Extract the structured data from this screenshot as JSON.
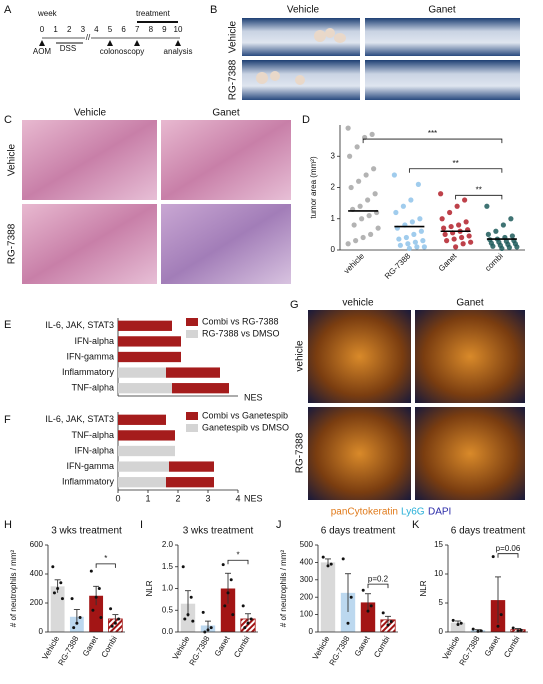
{
  "panels": [
    "A",
    "B",
    "C",
    "D",
    "E",
    "F",
    "G",
    "H",
    "I",
    "J",
    "K"
  ],
  "timeline": {
    "unit": "week",
    "weeks": [
      0,
      1,
      2,
      3,
      4,
      5,
      6,
      7,
      8,
      9,
      10
    ],
    "treatment": "treatment",
    "aom": "AOM",
    "dss": "DSS",
    "colonoscopy": "colonoscopy",
    "analysis": "analysis"
  },
  "images": {
    "B": {
      "columns": [
        "Vehicle",
        "Ganet"
      ],
      "rows": [
        "Vehicle",
        "RG-7388"
      ]
    },
    "C": {
      "columns": [
        "Vehicle",
        "Ganet"
      ],
      "rows": [
        "Vehicle",
        "RG-7388"
      ]
    },
    "G": {
      "columns": [
        "vehicle",
        "Ganet"
      ],
      "rows": [
        "vehicle",
        "RG-7388"
      ],
      "stains": [
        "panCytokeratin",
        "Ly6G",
        "DAPI"
      ]
    }
  },
  "chart_data": [
    {
      "type": "strip",
      "ylabel": "tumor area (mm²)",
      "categories": [
        "vehicle",
        "RG-7388",
        "Ganet",
        "combi"
      ],
      "colors": [
        "#a6a6a6",
        "#8fc3ea",
        "#b3202a",
        "#1d5a5a"
      ],
      "points": [
        [
          3.9,
          3.7,
          3.6,
          3.3,
          3.0,
          2.6,
          2.4,
          2.2,
          2.0,
          1.8,
          1.6,
          1.4,
          1.3,
          1.2,
          1.1,
          1.0,
          0.8,
          0.7,
          0.5,
          0.4,
          0.3,
          0.2
        ],
        [
          2.4,
          2.1,
          1.6,
          1.4,
          1.2,
          1.0,
          0.9,
          0.8,
          0.7,
          0.6,
          0.5,
          0.4,
          0.35,
          0.3,
          0.25,
          0.2,
          0.15,
          0.1,
          0.1,
          0.05
        ],
        [
          1.8,
          1.6,
          1.4,
          1.2,
          1.0,
          0.9,
          0.8,
          0.75,
          0.7,
          0.65,
          0.6,
          0.55,
          0.5,
          0.45,
          0.4,
          0.35,
          0.3,
          0.25,
          0.2,
          0.1
        ],
        [
          1.4,
          1.0,
          0.8,
          0.6,
          0.5,
          0.45,
          0.4,
          0.35,
          0.33,
          0.3,
          0.28,
          0.25,
          0.22,
          0.2,
          0.18,
          0.15,
          0.12,
          0.1,
          0.08,
          0.05
        ]
      ],
      "medians": [
        1.25,
        0.75,
        0.6,
        0.35
      ],
      "ylim": [
        0,
        4
      ],
      "yticks": [
        0,
        1,
        2,
        3
      ],
      "brackets": [
        {
          "label": "***",
          "from": "vehicle",
          "to": "combi",
          "y": 3.55
        },
        {
          "label": "**",
          "from": "RG-7388",
          "to": "combi",
          "y": 2.6
        },
        {
          "label": "**",
          "from": "Ganet",
          "to": "combi",
          "y": 1.75
        }
      ]
    },
    {
      "type": "hbar",
      "xlabel": "NES",
      "legend": "upper right",
      "categories": [
        "IL-6, JAK, STAT3",
        "IFN-alpha",
        "IFN-gamma",
        "Inflammatory",
        "TNF-alpha"
      ],
      "series": [
        {
          "name": "Combi vs RG-7388",
          "color": "#a51c1c",
          "values": [
            1.8,
            2.1,
            2.1,
            1.8,
            1.9
          ]
        },
        {
          "name": "RG-7388 vs DMSO",
          "color": "#d4d4d4",
          "values": [
            null,
            null,
            null,
            1.6,
            1.8
          ]
        }
      ],
      "xlim": [
        0,
        4
      ]
    },
    {
      "type": "hbar",
      "xlabel": "NES",
      "legend": "upper right",
      "categories": [
        "IL-6, JAK, STAT3",
        "TNF-alpha",
        "IFN-alpha",
        "IFN-gamma",
        "Inflammatory"
      ],
      "series": [
        {
          "name": "Combi vs Ganetespib",
          "color": "#a51c1c",
          "values": [
            1.6,
            1.9,
            null,
            1.5,
            1.6
          ]
        },
        {
          "name": "Ganetespib vs DMSO",
          "color": "#d4d4d4",
          "values": [
            null,
            null,
            1.9,
            1.7,
            1.6
          ]
        }
      ],
      "xlim": [
        0,
        4
      ],
      "xticks": [
        0,
        1,
        2,
        3,
        4
      ]
    },
    {
      "type": "barpoints",
      "title": "3 wks treatment",
      "ylabel": "# of neutrophils / mm²",
      "categories": [
        "Vehicle",
        "RG-7388",
        "Ganet",
        "Combi"
      ],
      "colors": [
        "#d9d9d9",
        "#bcd8ef",
        "#a31515",
        "#a31515"
      ],
      "hatch": [
        false,
        false,
        false,
        true
      ],
      "values": [
        315,
        105,
        250,
        90
      ],
      "errors": [
        45,
        50,
        65,
        30
      ],
      "points": [
        [
          450,
          340,
          300,
          270,
          230
        ],
        [
          230,
          100,
          60,
          30
        ],
        [
          420,
          300,
          240,
          150,
          100
        ],
        [
          160,
          90,
          60,
          40
        ]
      ],
      "ylim": [
        0,
        600
      ],
      "yticks": [
        0,
        200,
        400,
        600
      ],
      "brackets": [
        {
          "label": "*",
          "from": "Ganet",
          "to": "Combi",
          "y": 470
        }
      ]
    },
    {
      "type": "barpoints",
      "title": "3 wks treatment",
      "ylabel": "NLR",
      "categories": [
        "Vehicle",
        "RG-7388",
        "Ganet",
        "Combi"
      ],
      "colors": [
        "#d9d9d9",
        "#bcd8ef",
        "#a31515",
        "#a31515"
      ],
      "hatch": [
        false,
        false,
        false,
        true
      ],
      "values": [
        0.65,
        0.15,
        1.0,
        0.3
      ],
      "errors": [
        0.3,
        0.1,
        0.35,
        0.12
      ],
      "points": [
        [
          1.5,
          0.8,
          0.4,
          0.3,
          0.25
        ],
        [
          0.45,
          0.1,
          0.05,
          0.0
        ],
        [
          1.55,
          1.2,
          0.9,
          0.6,
          0.4
        ],
        [
          0.6,
          0.3,
          0.2,
          0.1
        ]
      ],
      "ylim": [
        0,
        2
      ],
      "yticks": [
        {
          "value": 0,
          "label": "0.0"
        },
        {
          "value": 0.5,
          "label": "0.5"
        },
        {
          "value": 1,
          "label": "1.0"
        },
        {
          "value": 1.5,
          "label": "1.5"
        },
        {
          "value": 2,
          "label": "2.0"
        }
      ],
      "brackets": [
        {
          "label": "*",
          "from": "Ganet",
          "to": "Combi",
          "y": 1.65
        }
      ]
    },
    {
      "type": "barpoints",
      "title": "6 days treatment",
      "ylabel": "# of neutrophils / mm²",
      "categories": [
        "Vehicle",
        "RG-7388",
        "Ganet",
        "Combi"
      ],
      "colors": [
        "#d9d9d9",
        "#bcd8ef",
        "#a31515",
        "#a31515"
      ],
      "hatch": [
        false,
        false,
        false,
        true
      ],
      "values": [
        400,
        225,
        170,
        70
      ],
      "errors": [
        20,
        110,
        50,
        20
      ],
      "points": [
        [
          430,
          390,
          380
        ],
        [
          420,
          200,
          50
        ],
        [
          240,
          150,
          120
        ],
        [
          110,
          60,
          40
        ]
      ],
      "ylim": [
        0,
        500
      ],
      "yticks": [
        0,
        100,
        200,
        300,
        400,
        500
      ],
      "brackets": [
        {
          "label": "p=0.2",
          "from": "Ganet",
          "to": "Combi",
          "y": 275
        }
      ]
    },
    {
      "type": "barpoints",
      "title": "6 days treatment",
      "ylabel": "NLR",
      "categories": [
        "Vehicle",
        "RG-7388",
        "Ganet",
        "Combi"
      ],
      "colors": [
        "#d9d9d9",
        "#bcd8ef",
        "#a31515",
        "#a31515"
      ],
      "hatch": [
        false,
        false,
        false,
        true
      ],
      "values": [
        1.6,
        0.3,
        5.5,
        0.4
      ],
      "errors": [
        0.3,
        0.1,
        4.0,
        0.2
      ],
      "points": [
        [
          2.0,
          1.5,
          1.3
        ],
        [
          0.5,
          0.2,
          0.1
        ],
        [
          13.0,
          3.0,
          1.0
        ],
        [
          0.7,
          0.3,
          0.2
        ]
      ],
      "ylim": [
        0,
        15
      ],
      "yticks": [
        0,
        5,
        10,
        15
      ],
      "brackets": [
        {
          "label": "p=0.06",
          "from": "Ganet",
          "to": "Combi",
          "y": 13.5
        }
      ]
    }
  ]
}
